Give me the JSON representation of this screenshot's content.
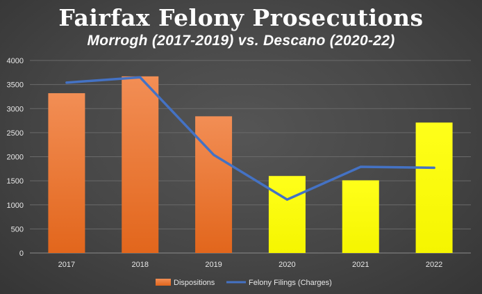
{
  "chart_data": {
    "type": "bar",
    "title": "Fairfax Felony Prosecutions",
    "subtitle": "Morrogh (2017-2019) vs. Descano (2020-22)",
    "categories": [
      "2017",
      "2018",
      "2019",
      "2020",
      "2021",
      "2022"
    ],
    "series": [
      {
        "name": "Dispositions",
        "type": "bar",
        "values": [
          3320,
          3670,
          2840,
          1600,
          1510,
          2710
        ],
        "colors": [
          "#e8752c",
          "#e8752c",
          "#e8752c",
          "#ffff00",
          "#ffff00",
          "#ffff00"
        ]
      },
      {
        "name": "Felony Filings (Charges)",
        "type": "line",
        "values": [
          3540,
          3650,
          2040,
          1110,
          1790,
          1770
        ],
        "color": "#4472c4"
      }
    ],
    "ylim": [
      0,
      4000
    ],
    "yticks": [
      0,
      500,
      1000,
      1500,
      2000,
      2500,
      3000,
      3500,
      4000
    ],
    "grid": true,
    "legend": "bottom"
  }
}
